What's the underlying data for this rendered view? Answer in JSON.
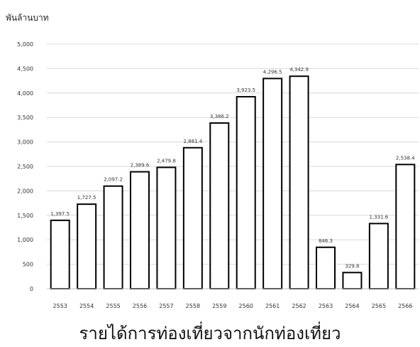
{
  "chart_data": {
    "type": "bar",
    "ylabel": "พันล้านบาท",
    "xlabel": "",
    "title": "รายได้การท่องเที่ยวจากนักท่องเที่ยว",
    "categories": [
      "2553",
      "2554",
      "2555",
      "2556",
      "2557",
      "2558",
      "2559",
      "2560",
      "2561",
      "2562",
      "2563",
      "2564",
      "2565",
      "2566"
    ],
    "values": [
      1397.5,
      1727.5,
      2097.2,
      2389.6,
      2479.8,
      2881.4,
      3386.2,
      3923.5,
      4296.5,
      4342.9,
      846.3,
      329.8,
      1331.6,
      2538.4
    ],
    "value_labels": [
      "1,397.5",
      "1,727.5",
      "2,097.2",
      "2,389.6",
      "2,479.8",
      "2,881.4",
      "3,386.2",
      "3,923.5",
      "4,296.5",
      "4,342.9",
      "846.3",
      "329.8",
      "1,331.6",
      "2,538.4"
    ],
    "ylim": [
      0,
      5000
    ],
    "y_ticks": [
      "0",
      "500",
      "1,000",
      "1,500",
      "2,000",
      "2,500",
      "3,000",
      "3,500",
      "4,000",
      "4,500",
      "5,000"
    ],
    "grid": true,
    "legend": "none",
    "colors": {
      "bar_fill": "#ffffff",
      "bar_stroke": "#000000",
      "grid": "#d9d9d9",
      "text": "#333333"
    }
  }
}
